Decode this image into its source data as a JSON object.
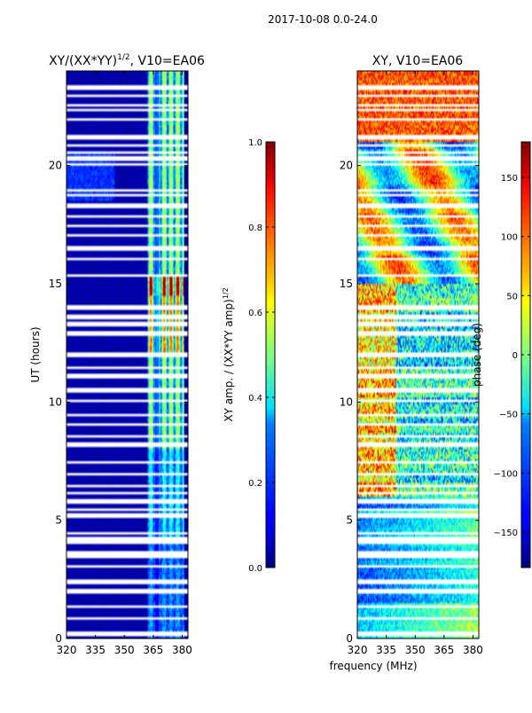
{
  "suptitle": "2017-10-08 0.0-24.0",
  "shared_xlabel": "frequency (MHz)",
  "colors": {
    "background": "#ffffff",
    "axis": "#000000",
    "gap": "#ffffff",
    "low": "#00007f",
    "high": "#7f0000"
  },
  "chart_data": [
    {
      "type": "heatmap",
      "id": "amplitude",
      "title": "XY/(XX*YY)^1/2, V10=EA06",
      "title_parts": [
        "XY/(XX*YY)",
        "1/2",
        ", V10=EA06"
      ],
      "xlabel": "",
      "ylabel": "UT (hours)",
      "xlim": [
        320,
        383
      ],
      "ylim": [
        0,
        24
      ],
      "xticks": [
        320,
        335,
        350,
        365,
        380
      ],
      "yticks": [
        0,
        5,
        10,
        15,
        20
      ],
      "colormap": "jet",
      "colorbar": {
        "label_parts": [
          "XY amp. / (XX*YY amp)",
          "1/2"
        ],
        "range": [
          0.0,
          1.0
        ],
        "ticks": [
          0.0,
          0.2,
          0.4,
          0.6,
          0.8,
          1.0
        ],
        "tick_labels": [
          "0.0",
          "0.2",
          "0.4",
          "0.6",
          "0.8",
          "1.0"
        ]
      }
    },
    {
      "type": "heatmap",
      "id": "phase",
      "title": "XY, V10=EA06",
      "xlabel": "frequency (MHz)",
      "ylabel": "",
      "xlim": [
        320,
        383
      ],
      "ylim": [
        0,
        24
      ],
      "xticks": [
        320,
        335,
        350,
        365,
        380
      ],
      "yticks": [
        0,
        5,
        10,
        15,
        20
      ],
      "colormap": "jet",
      "colorbar": {
        "label": "phase (deg)",
        "range": [
          -180,
          180
        ],
        "ticks": [
          -150,
          -100,
          -50,
          0,
          50,
          100,
          150
        ],
        "tick_labels": [
          "−150",
          "−100",
          "−50",
          "0",
          "50",
          "100",
          "150"
        ]
      }
    }
  ],
  "gap_times_hours": [
    0.2,
    0.85,
    1.35,
    2.0,
    2.4,
    3.05,
    3.45,
    3.6,
    4.05,
    4.2,
    4.45,
    5.2,
    5.45,
    5.8,
    6.15,
    6.45,
    6.95,
    7.45,
    8.2,
    8.55,
    9.05,
    9.45,
    10.05,
    10.5,
    11.1,
    11.45,
    11.95,
    12.05,
    12.9,
    13.3,
    13.6,
    13.95,
    14.05,
    15.35,
    16.05,
    16.5,
    17.05,
    17.45,
    17.85,
    18.3,
    18.75,
    18.95,
    20.05,
    20.3,
    20.55,
    20.85,
    21.2,
    21.95,
    22.35,
    22.55,
    22.95,
    23.3
  ]
}
